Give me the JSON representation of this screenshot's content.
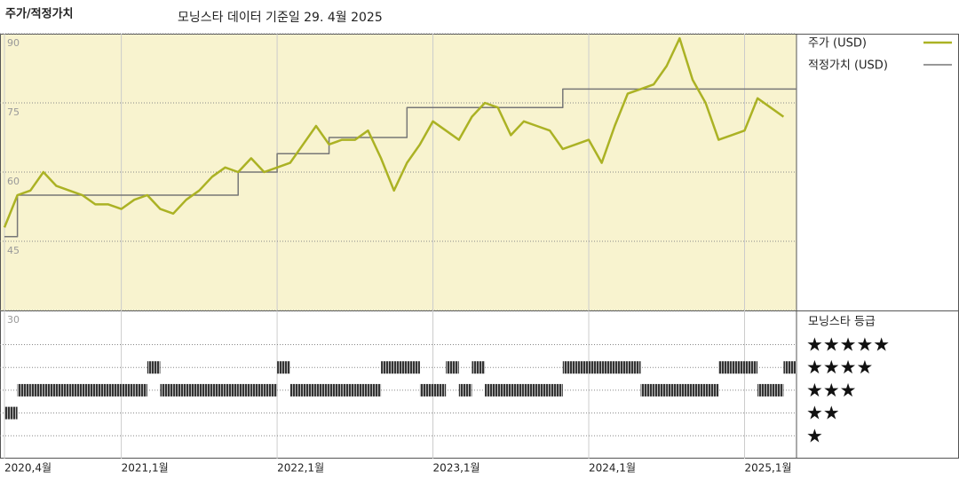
{
  "chart_data": {
    "type": "line",
    "title": "주가/적정가치",
    "subtitle": "모닝스타 데이터 기준일 29. 4월 2025",
    "x": [
      "2020-04",
      "2020-05",
      "2020-06",
      "2020-07",
      "2020-08",
      "2020-09",
      "2020-10",
      "2020-11",
      "2020-12",
      "2021-01",
      "2021-02",
      "2021-03",
      "2021-04",
      "2021-05",
      "2021-06",
      "2021-07",
      "2021-08",
      "2021-09",
      "2021-10",
      "2021-11",
      "2021-12",
      "2022-01",
      "2022-02",
      "2022-03",
      "2022-04",
      "2022-05",
      "2022-06",
      "2022-07",
      "2022-08",
      "2022-09",
      "2022-10",
      "2022-11",
      "2022-12",
      "2023-01",
      "2023-02",
      "2023-03",
      "2023-04",
      "2023-05",
      "2023-06",
      "2023-07",
      "2023-08",
      "2023-09",
      "2023-10",
      "2023-11",
      "2023-12",
      "2024-01",
      "2024-02",
      "2024-03",
      "2024-04",
      "2024-05",
      "2024-06",
      "2024-07",
      "2024-08",
      "2024-09",
      "2024-10",
      "2024-11",
      "2024-12",
      "2025-01",
      "2025-02",
      "2025-03",
      "2025-04"
    ],
    "series": [
      {
        "name": "주가 (USD)",
        "color": "#abb224",
        "values": [
          48,
          55,
          56,
          60,
          57,
          56,
          55,
          53,
          53,
          52,
          54,
          55,
          52,
          51,
          54,
          56,
          59,
          61,
          60,
          63,
          60,
          61,
          62,
          66,
          70,
          66,
          67,
          67,
          69,
          63,
          56,
          62,
          66,
          71,
          69,
          67,
          72,
          75,
          74,
          68,
          71,
          70,
          69,
          65,
          66,
          67,
          62,
          70,
          77,
          78,
          79,
          83,
          89,
          80,
          75,
          67,
          68,
          69,
          76,
          74,
          72
        ]
      },
      {
        "name": "적정가치 (USD)",
        "color": "#777777",
        "step": true,
        "values": [
          46,
          55,
          55,
          55,
          55,
          55,
          55,
          55,
          55,
          55,
          55,
          55,
          55,
          55,
          55,
          55,
          55,
          55,
          60,
          60,
          60,
          64,
          64,
          64,
          64,
          67.5,
          67.5,
          67.5,
          67.5,
          67.5,
          67.5,
          74,
          74,
          74,
          74,
          74,
          74,
          74,
          74,
          74,
          74,
          74,
          74,
          78,
          78,
          78,
          78,
          78,
          78,
          78,
          78,
          78,
          78,
          78,
          78,
          78,
          78,
          78,
          78,
          78,
          78
        ]
      }
    ],
    "xlim": [
      "2020-04",
      "2025-05"
    ],
    "xticks": [
      {
        "value": "2020-04",
        "label": "2020,4월"
      },
      {
        "value": "2021-01",
        "label": "2021,1월"
      },
      {
        "value": "2022-01",
        "label": "2022,1월"
      },
      {
        "value": "2023-01",
        "label": "2023,1월"
      },
      {
        "value": "2024-01",
        "label": "2024,1월"
      },
      {
        "value": "2025-01",
        "label": "2025,1월"
      }
    ],
    "ylim": [
      30,
      90
    ],
    "yticks": [
      30,
      45,
      60,
      75,
      90
    ],
    "grid": true,
    "ratings": {
      "title": "모닝스타 등급",
      "ylim": [
        0,
        6.5
      ],
      "levels": [
        {
          "value": 5,
          "label": "★★★★★"
        },
        {
          "value": 4,
          "label": "★★★★"
        },
        {
          "value": 3,
          "label": "★★★"
        },
        {
          "value": 2,
          "label": "★★"
        },
        {
          "value": 1,
          "label": "★"
        }
      ],
      "values": [
        2,
        3,
        3,
        3,
        3,
        3,
        3,
        3,
        3,
        3,
        3,
        4,
        3,
        3,
        3,
        3,
        3,
        3,
        3,
        3,
        3,
        4,
        3,
        3,
        3,
        3,
        3,
        3,
        3,
        4,
        4,
        4,
        3,
        3,
        4,
        3,
        4,
        3,
        3,
        3,
        3,
        3,
        3,
        4,
        4,
        4,
        4,
        4,
        4,
        3,
        3,
        3,
        3,
        3,
        3,
        4,
        4,
        4,
        3,
        3,
        4
      ]
    }
  }
}
